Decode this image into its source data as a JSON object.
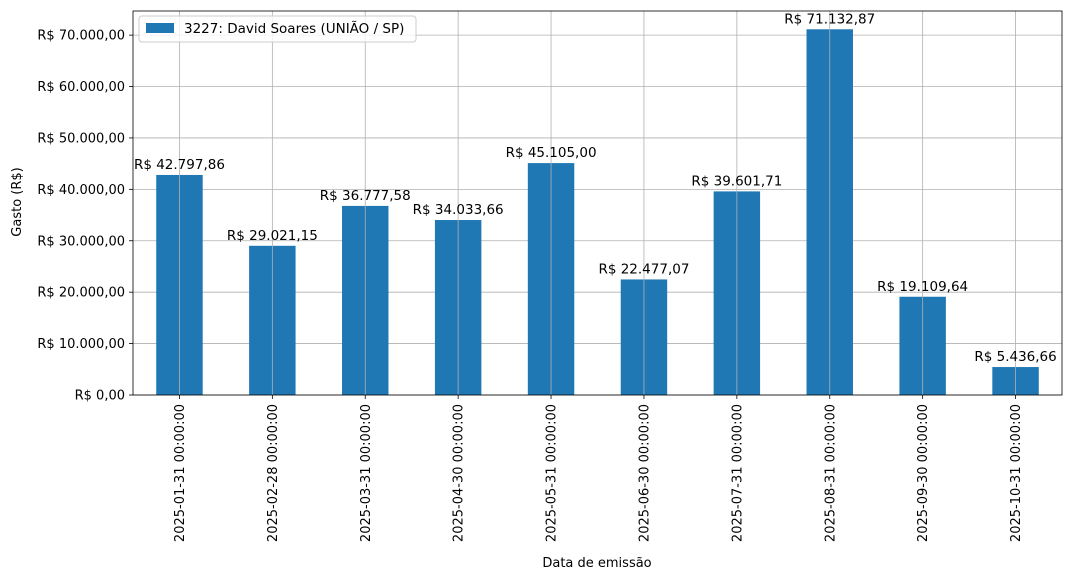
{
  "chart_data": {
    "type": "bar",
    "xlabel": "Data de emissão",
    "ylabel": "Gasto (R$)",
    "categories": [
      "2025-01-31 00:00:00",
      "2025-02-28 00:00:00",
      "2025-03-31 00:00:00",
      "2025-04-30 00:00:00",
      "2025-05-31 00:00:00",
      "2025-06-30 00:00:00",
      "2025-07-31 00:00:00",
      "2025-08-31 00:00:00",
      "2025-09-30 00:00:00",
      "2025-10-31 00:00:00"
    ],
    "series": [
      {
        "name": "3227: David Soares (UNIÃO / SP)",
        "color": "#1f77b4",
        "values": [
          42797.86,
          29021.15,
          36777.58,
          34033.66,
          45105.0,
          22477.07,
          39601.71,
          71132.87,
          19109.64,
          5436.66
        ],
        "labels": [
          "R$ 42.797,86",
          "R$ 29.021,15",
          "R$ 36.777,58",
          "R$ 34.033,66",
          "R$ 45.105,00",
          "R$ 22.477,07",
          "R$ 39.601,71",
          "R$ 71.132,87",
          "R$ 19.109,64",
          "R$ 5.436,66"
        ]
      }
    ],
    "yticks": [
      0,
      10000,
      20000,
      30000,
      40000,
      50000,
      60000,
      70000
    ],
    "ytick_labels": [
      "R$ 0,00",
      "R$ 10.000,00",
      "R$ 20.000,00",
      "R$ 30.000,00",
      "R$ 40.000,00",
      "R$ 50.000,00",
      "R$ 60.000,00",
      "R$ 70.000,00"
    ],
    "ylim": [
      0,
      74689.51
    ],
    "grid": true,
    "legend_position": "top-left"
  }
}
